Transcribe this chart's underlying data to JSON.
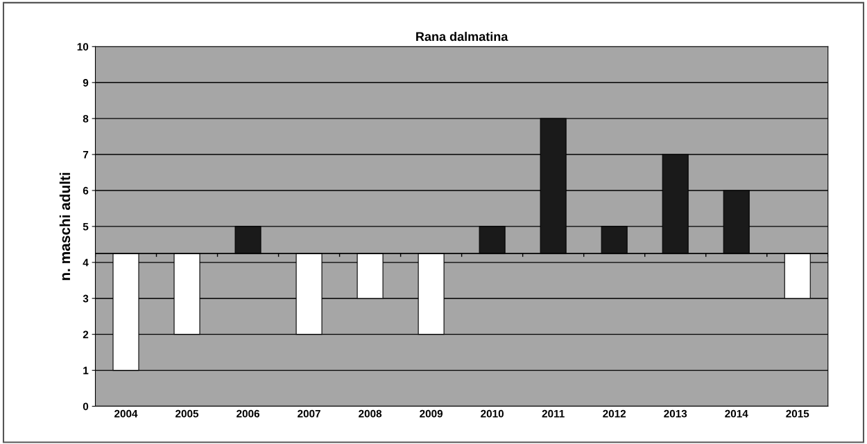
{
  "chart_data": {
    "type": "bar",
    "title": "Rana dalmatina",
    "ylabel": "n. maschi adulti",
    "categories": [
      "2004",
      "2005",
      "2006",
      "2007",
      "2008",
      "2009",
      "2010",
      "2011",
      "2012",
      "2013",
      "2014",
      "2015"
    ],
    "base": [
      4.25,
      4.25,
      4.25,
      4.25,
      4.25,
      4.25,
      4.25,
      4.25,
      4.25,
      4.25,
      4.25,
      4.25
    ],
    "values": [
      -3.25,
      -2.25,
      0.75,
      -2.25,
      -1.25,
      -2.25,
      0.75,
      3.75,
      0.75,
      2.75,
      1.75,
      -1.25
    ],
    "colors": [
      "#ffffff",
      "#ffffff",
      "#1a1a1a",
      "#ffffff",
      "#ffffff",
      "#ffffff",
      "#1a1a1a",
      "#1a1a1a",
      "#1a1a1a",
      "#1a1a1a",
      "#1a1a1a",
      "#ffffff"
    ],
    "ylim": [
      0,
      10
    ],
    "yticks": [
      0,
      1,
      2,
      3,
      4,
      5,
      6,
      7,
      8,
      9,
      10
    ],
    "grid": "y",
    "ref_lines": [
      {
        "axis": "y",
        "value": 4.25,
        "label": null,
        "color": "#000000"
      }
    ]
  }
}
